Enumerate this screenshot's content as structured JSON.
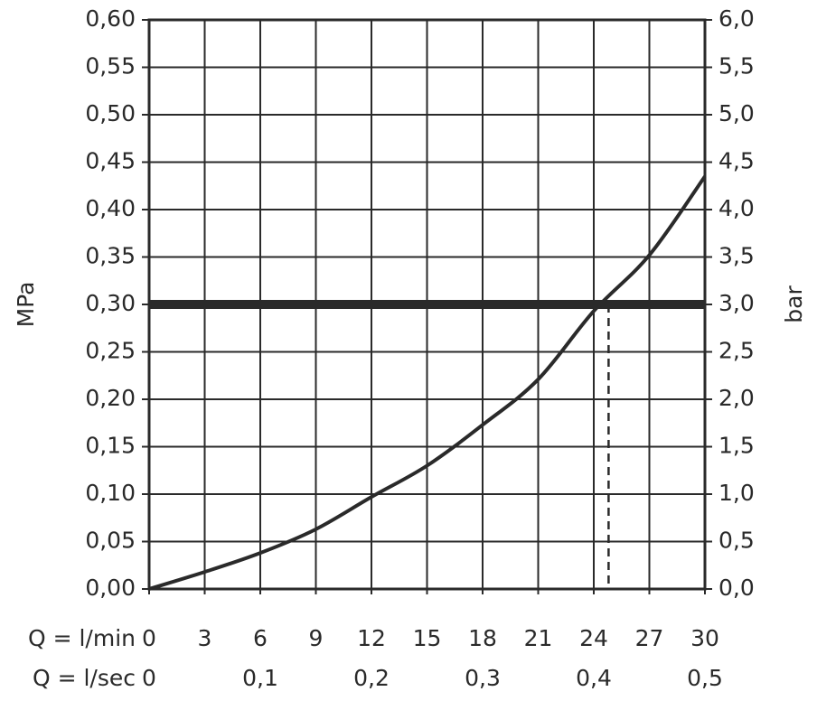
{
  "chart_data": {
    "type": "line",
    "ylabel": "MPa",
    "y2label": "bar",
    "xlabel": "Q = l/min",
    "x2label": "Q = l/sec",
    "x": [
      0,
      3,
      6,
      9,
      12,
      15,
      18,
      21,
      24,
      27,
      30
    ],
    "series": [
      {
        "color": "#2a2a2a",
        "values": [
          0,
          0.018,
          0.038,
          0.063,
          0.097,
          0.13,
          0.173,
          0.221,
          0.293,
          0.352,
          0.435
        ]
      }
    ],
    "xlim": [
      0,
      30
    ],
    "xticks": [
      0,
      3,
      6,
      9,
      12,
      15,
      18,
      21,
      24,
      27,
      30
    ],
    "x2lim": [
      0,
      0.5
    ],
    "x2ticks": [
      0,
      {
        "value": 0.1,
        "label": "0,1"
      },
      {
        "value": 0.2,
        "label": "0,2"
      },
      {
        "value": 0.3,
        "label": "0,3"
      },
      {
        "value": 0.4,
        "label": "0,4"
      },
      {
        "value": 0.5,
        "label": "0,5"
      }
    ],
    "ylim": [
      0,
      0.6
    ],
    "yticks": [
      {
        "value": 0,
        "label": "0,00"
      },
      {
        "value": 0.05,
        "label": "0,05"
      },
      {
        "value": 0.1,
        "label": "0,10"
      },
      {
        "value": 0.15,
        "label": "0,15"
      },
      {
        "value": 0.2,
        "label": "0,20"
      },
      {
        "value": 0.25,
        "label": "0,25"
      },
      {
        "value": 0.3,
        "label": "0,30"
      },
      {
        "value": 0.35,
        "label": "0,35"
      },
      {
        "value": 0.4,
        "label": "0,40"
      },
      {
        "value": 0.45,
        "label": "0,45"
      },
      {
        "value": 0.5,
        "label": "0,50"
      },
      {
        "value": 0.55,
        "label": "0,55"
      },
      {
        "value": 0.6,
        "label": "0,60"
      }
    ],
    "y2lim": [
      0,
      6
    ],
    "y2ticks": [
      {
        "value": 0,
        "label": "0,0"
      },
      {
        "value": 0.5,
        "label": "0,5"
      },
      {
        "value": 1,
        "label": "1,0"
      },
      {
        "value": 1.5,
        "label": "1,5"
      },
      {
        "value": 2,
        "label": "2,0"
      },
      {
        "value": 2.5,
        "label": "2,5"
      },
      {
        "value": 3,
        "label": "3,0"
      },
      {
        "value": 3.5,
        "label": "3,5"
      },
      {
        "value": 4,
        "label": "4,0"
      },
      {
        "value": 4.5,
        "label": "4,5"
      },
      {
        "value": 5,
        "label": "5,0"
      },
      {
        "value": 5.5,
        "label": "5,5"
      },
      {
        "value": 6,
        "label": "6,0"
      }
    ],
    "hline": 0.3,
    "vline_x": 24.8,
    "grid": true
  }
}
